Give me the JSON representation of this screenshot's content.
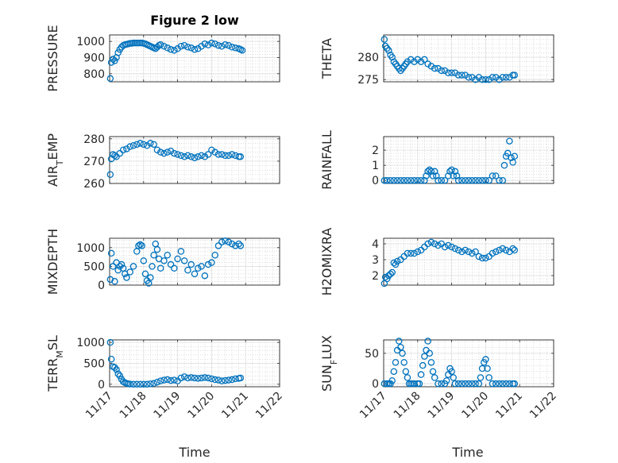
{
  "figure_title": "Figure 2 low",
  "marker_color": "#0072BD",
  "chart_data": [
    {
      "type": "scatter",
      "ylabel": "PRESSURE",
      "ylim": [
        750,
        1040
      ],
      "yticks": [
        800,
        900,
        1000
      ],
      "xlim": [
        0,
        5
      ],
      "xticks": [
        "11/17",
        "11/18",
        "11/19",
        "11/20",
        "11/21",
        "11/22"
      ],
      "grid": true,
      "x": [
        0.02,
        0.05,
        0.1,
        0.15,
        0.2,
        0.25,
        0.3,
        0.35,
        0.4,
        0.45,
        0.5,
        0.55,
        0.6,
        0.65,
        0.7,
        0.75,
        0.8,
        0.85,
        0.9,
        0.95,
        1.0,
        1.05,
        1.1,
        1.15,
        1.2,
        1.25,
        1.3,
        1.35,
        1.4,
        1.45,
        1.5,
        1.6,
        1.7,
        1.8,
        1.9,
        2.0,
        2.1,
        2.2,
        2.3,
        2.4,
        2.5,
        2.6,
        2.7,
        2.8,
        2.9,
        3.0,
        3.1,
        3.2,
        3.3,
        3.4,
        3.5,
        3.6,
        3.7,
        3.8,
        3.85,
        3.9
      ],
      "y": [
        770,
        870,
        890,
        880,
        900,
        930,
        950,
        965,
        975,
        980,
        982,
        985,
        988,
        988,
        990,
        990,
        990,
        990,
        990,
        990,
        988,
        985,
        980,
        975,
        970,
        965,
        960,
        955,
        965,
        975,
        980,
        970,
        960,
        950,
        945,
        955,
        970,
        975,
        965,
        960,
        950,
        955,
        970,
        985,
        978,
        990,
        985,
        975,
        970,
        980,
        975,
        965,
        960,
        955,
        950,
        945
      ]
    },
    {
      "type": "scatter",
      "ylabel": "THETA",
      "ylim": [
        274.5,
        285
      ],
      "yticks": [
        275,
        280
      ],
      "xlim": [
        0,
        5
      ],
      "xticks": [
        "11/17",
        "11/18",
        "11/19",
        "11/20",
        "11/21",
        "11/22"
      ],
      "grid": true,
      "x": [
        0.02,
        0.05,
        0.1,
        0.15,
        0.2,
        0.25,
        0.3,
        0.35,
        0.4,
        0.45,
        0.5,
        0.55,
        0.6,
        0.65,
        0.7,
        0.8,
        0.9,
        1.0,
        1.1,
        1.2,
        1.3,
        1.4,
        1.5,
        1.6,
        1.7,
        1.8,
        1.9,
        2.0,
        2.1,
        2.2,
        2.3,
        2.4,
        2.5,
        2.6,
        2.7,
        2.8,
        2.9,
        3.0,
        3.1,
        3.2,
        3.3,
        3.4,
        3.5,
        3.6,
        3.7,
        3.8,
        3.85
      ],
      "y": [
        284,
        282.5,
        282,
        281.5,
        280.5,
        280,
        279,
        278.5,
        278,
        277.5,
        277,
        277.5,
        278,
        278.5,
        279,
        279.5,
        279,
        279.5,
        279,
        279.5,
        278.5,
        278,
        277.5,
        277.5,
        277,
        277,
        276.5,
        276.5,
        276.5,
        276,
        276,
        276,
        275.5,
        275.5,
        275,
        275.5,
        275,
        275,
        275,
        275.5,
        275.5,
        275,
        275.5,
        275.5,
        275.5,
        276,
        276
      ]
    },
    {
      "type": "scatter",
      "ylabel": "AIR_TEMP",
      "ylim": [
        260,
        281
      ],
      "yticks": [
        260,
        270,
        280
      ],
      "xlim": [
        0,
        5
      ],
      "xticks": [
        "11/17",
        "11/18",
        "11/19",
        "11/20",
        "11/21",
        "11/22"
      ],
      "grid": true,
      "x": [
        0.02,
        0.05,
        0.1,
        0.15,
        0.2,
        0.3,
        0.4,
        0.5,
        0.6,
        0.7,
        0.8,
        0.9,
        1.0,
        1.1,
        1.2,
        1.3,
        1.4,
        1.5,
        1.6,
        1.7,
        1.8,
        1.9,
        2.0,
        2.1,
        2.2,
        2.3,
        2.4,
        2.5,
        2.6,
        2.7,
        2.8,
        2.9,
        3.0,
        3.1,
        3.2,
        3.3,
        3.4,
        3.5,
        3.6,
        3.7,
        3.8,
        3.85
      ],
      "y": [
        264,
        271,
        273,
        272.5,
        272,
        273.5,
        275,
        275.5,
        276.5,
        277,
        277.5,
        278,
        277.5,
        277,
        278,
        277.5,
        275,
        274,
        273.5,
        274,
        274.5,
        273.5,
        273,
        272.5,
        272,
        272.5,
        272,
        271.5,
        272,
        272.5,
        272,
        273,
        275,
        274,
        273,
        273,
        272.5,
        272.5,
        273,
        272.5,
        272,
        272
      ]
    },
    {
      "type": "scatter",
      "ylabel": "RAINFALL",
      "ylim": [
        -0.2,
        2.9
      ],
      "yticks": [
        0,
        1,
        2
      ],
      "xlim": [
        0,
        5
      ],
      "xticks": [
        "11/17",
        "11/18",
        "11/19",
        "11/20",
        "11/21",
        "11/22"
      ],
      "grid": true,
      "x": [
        0.02,
        0.1,
        0.2,
        0.3,
        0.4,
        0.5,
        0.6,
        0.7,
        0.8,
        0.9,
        1.0,
        1.1,
        1.2,
        1.25,
        1.3,
        1.35,
        1.4,
        1.45,
        1.5,
        1.55,
        1.6,
        1.7,
        1.8,
        1.9,
        1.95,
        2.0,
        2.05,
        2.1,
        2.15,
        2.2,
        2.3,
        2.4,
        2.5,
        2.6,
        2.7,
        2.8,
        2.9,
        3.0,
        3.1,
        3.2,
        3.3,
        3.4,
        3.5,
        3.55,
        3.6,
        3.65,
        3.7,
        3.75,
        3.8,
        3.85
      ],
      "y": [
        0,
        0,
        0,
        0,
        0,
        0,
        0,
        0,
        0,
        0,
        0,
        0,
        0,
        0.3,
        0.6,
        0.7,
        0.6,
        0.3,
        0.6,
        0.3,
        0,
        0,
        0,
        0.3,
        0.6,
        0.7,
        0.3,
        0.6,
        0.3,
        0,
        0,
        0,
        0,
        0,
        0,
        0,
        0,
        0,
        0,
        0.3,
        0.3,
        0,
        0,
        1.0,
        1.6,
        1.8,
        2.6,
        1.5,
        1.2,
        1.6
      ]
    },
    {
      "type": "scatter",
      "ylabel": "MIXDEPTH",
      "ylim": [
        0,
        1250
      ],
      "yticks": [
        0,
        500,
        1000
      ],
      "xlim": [
        0,
        5
      ],
      "xticks": [
        "11/17",
        "11/18",
        "11/19",
        "11/20",
        "11/21",
        "11/22"
      ],
      "grid": true,
      "x": [
        0.02,
        0.05,
        0.1,
        0.15,
        0.2,
        0.25,
        0.3,
        0.35,
        0.4,
        0.45,
        0.5,
        0.6,
        0.7,
        0.8,
        0.85,
        0.9,
        0.95,
        1.0,
        1.05,
        1.1,
        1.15,
        1.2,
        1.25,
        1.3,
        1.35,
        1.4,
        1.45,
        1.5,
        1.6,
        1.7,
        1.8,
        1.9,
        2.0,
        2.1,
        2.2,
        2.3,
        2.4,
        2.5,
        2.6,
        2.7,
        2.8,
        2.9,
        3.0,
        3.1,
        3.2,
        3.3,
        3.4,
        3.5,
        3.6,
        3.7,
        3.8,
        3.85
      ],
      "y": [
        150,
        850,
        500,
        100,
        600,
        400,
        500,
        550,
        450,
        300,
        200,
        350,
        500,
        900,
        1050,
        1080,
        1050,
        650,
        300,
        120,
        50,
        200,
        500,
        800,
        1100,
        950,
        700,
        450,
        650,
        800,
        550,
        450,
        700,
        900,
        650,
        400,
        550,
        300,
        450,
        500,
        250,
        550,
        600,
        800,
        1050,
        1150,
        1180,
        1150,
        1100,
        1050,
        1100,
        1050
      ]
    },
    {
      "type": "scatter",
      "ylabel": "H2OMIXRA",
      "ylim": [
        1.4,
        4.35
      ],
      "yticks": [
        2,
        3,
        4
      ],
      "xlim": [
        0,
        5
      ],
      "xticks": [
        "11/17",
        "11/18",
        "11/19",
        "11/20",
        "11/21",
        "11/22"
      ],
      "grid": true,
      "x": [
        0.02,
        0.05,
        0.1,
        0.15,
        0.2,
        0.25,
        0.3,
        0.35,
        0.4,
        0.5,
        0.6,
        0.7,
        0.8,
        0.9,
        1.0,
        1.1,
        1.2,
        1.3,
        1.4,
        1.5,
        1.6,
        1.7,
        1.8,
        1.9,
        2.0,
        2.1,
        2.2,
        2.3,
        2.4,
        2.5,
        2.6,
        2.7,
        2.8,
        2.9,
        3.0,
        3.1,
        3.2,
        3.3,
        3.4,
        3.5,
        3.6,
        3.7,
        3.8,
        3.85
      ],
      "y": [
        1.5,
        1.9,
        1.8,
        2.0,
        2.1,
        2.2,
        2.8,
        2.7,
        2.9,
        3.0,
        3.2,
        3.4,
        3.4,
        3.4,
        3.5,
        3.6,
        3.8,
        4.0,
        4.1,
        4.0,
        3.9,
        4.0,
        3.8,
        3.9,
        3.8,
        3.7,
        3.6,
        3.5,
        3.6,
        3.5,
        3.4,
        3.5,
        3.2,
        3.1,
        3.1,
        3.2,
        3.4,
        3.5,
        3.6,
        3.7,
        3.6,
        3.5,
        3.7,
        3.6
      ]
    },
    {
      "type": "scatter",
      "ylabel": "TERR_MSL",
      "ylim": [
        -60,
        1060
      ],
      "yticks": [
        0,
        500,
        1000
      ],
      "xlim": [
        0,
        5
      ],
      "xticks": [
        "11/17",
        "11/18",
        "11/19",
        "11/20",
        "11/21",
        "11/22"
      ],
      "grid": true,
      "x": [
        0.02,
        0.05,
        0.1,
        0.15,
        0.2,
        0.25,
        0.3,
        0.35,
        0.4,
        0.45,
        0.5,
        0.55,
        0.6,
        0.7,
        0.8,
        0.9,
        1.0,
        1.1,
        1.2,
        1.3,
        1.4,
        1.5,
        1.6,
        1.7,
        1.8,
        1.9,
        2.0,
        2.1,
        2.2,
        2.3,
        2.4,
        2.5,
        2.6,
        2.7,
        2.8,
        2.9,
        3.0,
        3.1,
        3.2,
        3.3,
        3.4,
        3.5,
        3.6,
        3.7,
        3.8,
        3.85
      ],
      "y": [
        1000,
        600,
        420,
        400,
        350,
        250,
        200,
        120,
        60,
        40,
        20,
        10,
        5,
        0,
        0,
        0,
        0,
        0,
        10,
        20,
        50,
        80,
        100,
        110,
        90,
        100,
        80,
        150,
        180,
        150,
        160,
        150,
        140,
        150,
        160,
        150,
        130,
        110,
        100,
        80,
        90,
        100,
        110,
        130,
        140,
        150
      ]
    },
    {
      "type": "scatter",
      "ylabel": "SUN_FLUX",
      "ylim": [
        -5,
        72
      ],
      "yticks": [
        0,
        50
      ],
      "xlim": [
        0,
        5
      ],
      "xticks": [
        "11/17",
        "11/18",
        "11/19",
        "11/20",
        "11/21",
        "11/22"
      ],
      "grid": true,
      "x": [
        0.02,
        0.1,
        0.15,
        0.2,
        0.25,
        0.3,
        0.35,
        0.4,
        0.45,
        0.5,
        0.55,
        0.6,
        0.65,
        0.7,
        0.75,
        0.8,
        0.85,
        0.9,
        1.0,
        1.05,
        1.1,
        1.15,
        1.2,
        1.25,
        1.3,
        1.35,
        1.4,
        1.45,
        1.5,
        1.6,
        1.7,
        1.8,
        1.85,
        1.9,
        1.95,
        2.0,
        2.05,
        2.1,
        2.2,
        2.3,
        2.4,
        2.5,
        2.6,
        2.7,
        2.8,
        2.85,
        2.9,
        2.95,
        3.0,
        3.05,
        3.1,
        3.2,
        3.3,
        3.4,
        3.5,
        3.6,
        3.7,
        3.8,
        3.85
      ],
      "y": [
        0,
        0,
        0,
        0,
        5,
        20,
        35,
        55,
        70,
        60,
        50,
        35,
        20,
        10,
        0,
        0,
        0,
        0,
        0,
        0,
        15,
        30,
        45,
        55,
        70,
        50,
        35,
        20,
        10,
        0,
        0,
        0,
        5,
        15,
        25,
        20,
        10,
        0,
        0,
        0,
        0,
        0,
        0,
        0,
        0,
        10,
        25,
        35,
        40,
        25,
        10,
        0,
        0,
        0,
        0,
        0,
        0,
        0,
        0
      ]
    }
  ],
  "xlabel_left": "Time",
  "xlabel_right": "Time"
}
